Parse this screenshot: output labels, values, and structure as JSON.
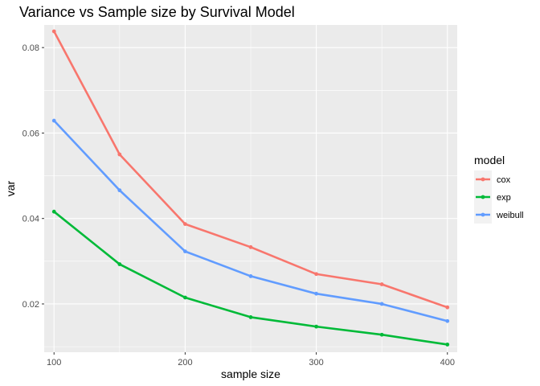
{
  "chart_data": {
    "type": "line",
    "title": "Variance vs Sample size by Survival Model",
    "xlabel": "sample size",
    "ylabel": "var",
    "x": [
      100,
      150,
      200,
      250,
      300,
      350,
      400
    ],
    "xticks": [
      100,
      200,
      300,
      400
    ],
    "xtick_labels": [
      "100",
      "200",
      "300",
      "400"
    ],
    "yticks": [
      0.02,
      0.04,
      0.06,
      0.08
    ],
    "ytick_labels": [
      "0.02",
      "0.04",
      "0.06",
      "0.08"
    ],
    "xlim": [
      92.5,
      407.5
    ],
    "ylim": [
      0.0087,
      0.0853
    ],
    "grid": true,
    "legend": {
      "title": "model",
      "position": "right"
    },
    "series": [
      {
        "name": "cox",
        "color": "#F8766D",
        "values": [
          0.0838,
          0.055,
          0.0387,
          0.0333,
          0.027,
          0.0246,
          0.0192
        ]
      },
      {
        "name": "exp",
        "color": "#00BA38",
        "values": [
          0.0416,
          0.0293,
          0.0215,
          0.0169,
          0.0147,
          0.0128,
          0.0105
        ]
      },
      {
        "name": "weibull",
        "color": "#619CFF",
        "values": [
          0.0629,
          0.0466,
          0.0323,
          0.0265,
          0.0224,
          0.02,
          0.016
        ]
      }
    ]
  }
}
